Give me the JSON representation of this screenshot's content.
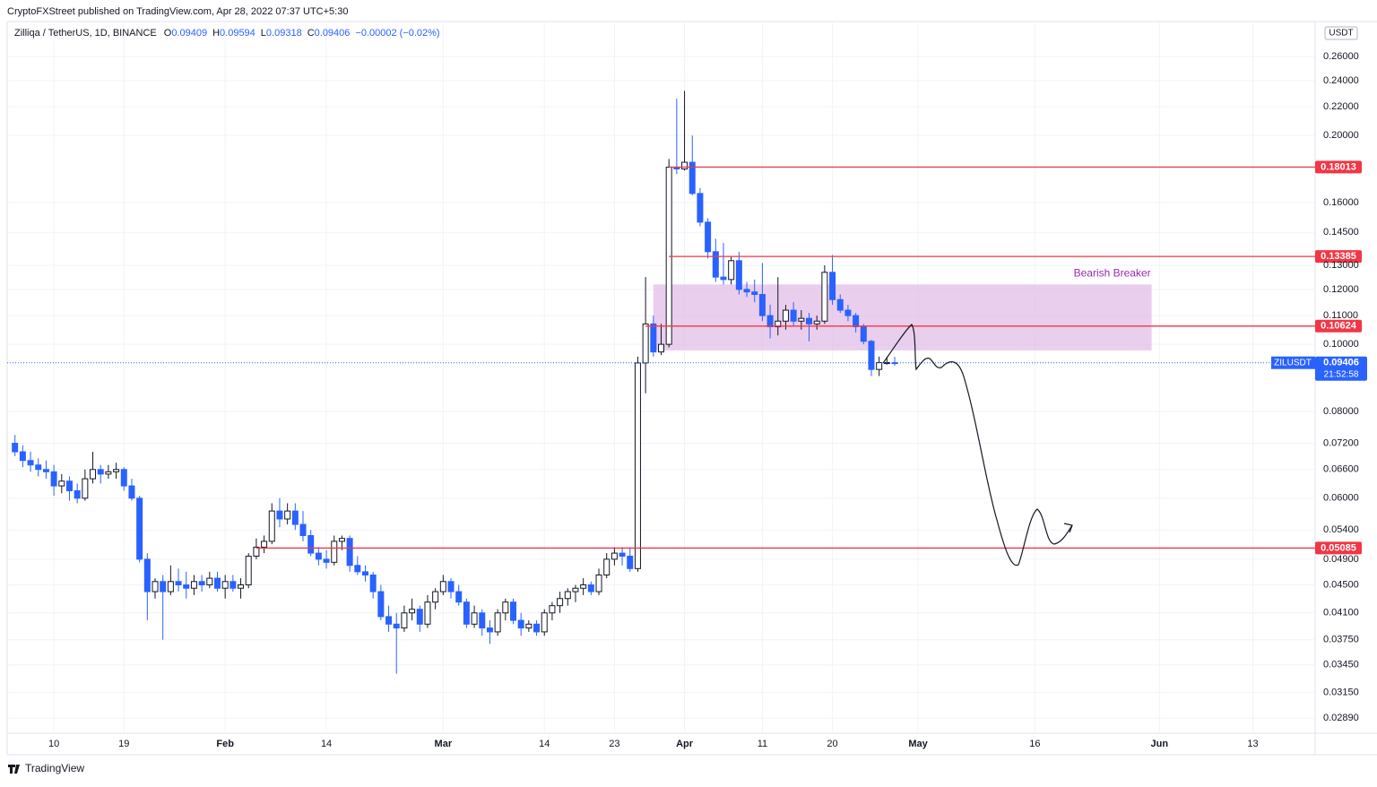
{
  "header": {
    "publisher": "CryptoFXStreet published on TradingView.com, Apr 28, 2022 07:37 UTC+5:30",
    "brand": "TradingView"
  },
  "chart_data": {
    "type": "candlestick",
    "title": "Zilliqa / TetherUS, 1D, BINANCE",
    "legend_ohlc": [
      "O",
      "H",
      "L",
      "C"
    ],
    "change": "−0.00002 (−0.02%)",
    "y_unit": "USDT",
    "log_scale": true,
    "grid": true,
    "up_color": "#ffffff",
    "down_color": "#2962ff",
    "outline_color": "#131722",
    "xlim": [
      "2022-01-04",
      "2022-06-21"
    ],
    "xticks": [
      {
        "value": "2022-01-10",
        "label": "10"
      },
      {
        "value": "2022-01-19",
        "label": "19"
      },
      {
        "value": "2022-02-01",
        "label": "Feb"
      },
      {
        "value": "2022-02-14",
        "label": "14"
      },
      {
        "value": "2022-03-01",
        "label": "Mar"
      },
      {
        "value": "2022-03-14",
        "label": "14"
      },
      {
        "value": "2022-03-23",
        "label": "23"
      },
      {
        "value": "2022-04-01",
        "label": "Apr"
      },
      {
        "value": "2022-04-11",
        "label": "11"
      },
      {
        "value": "2022-04-20",
        "label": "20"
      },
      {
        "value": "2022-05-01",
        "label": "May"
      },
      {
        "value": "2022-05-16",
        "label": "16"
      },
      {
        "value": "2022-06-01",
        "label": "Jun"
      },
      {
        "value": "2022-06-13",
        "label": "13"
      }
    ],
    "ylim": [
      0.0275,
      0.292
    ],
    "yticks": [
      {
        "value": 0.26,
        "label": "0.26000"
      },
      {
        "value": 0.24,
        "label": "0.24000"
      },
      {
        "value": 0.22,
        "label": "0.22000"
      },
      {
        "value": 0.2,
        "label": "0.20000"
      },
      {
        "value": 0.16,
        "label": "0.16000"
      },
      {
        "value": 0.145,
        "label": "0.14500"
      },
      {
        "value": 0.13,
        "label": "0.13000"
      },
      {
        "value": 0.12,
        "label": "0.12000"
      },
      {
        "value": 0.11,
        "label": "0.11000"
      },
      {
        "value": 0.1,
        "label": "0.10000"
      },
      {
        "value": 0.08,
        "label": "0.08000"
      },
      {
        "value": 0.072,
        "label": "0.07200"
      },
      {
        "value": 0.066,
        "label": "0.06600"
      },
      {
        "value": 0.06,
        "label": "0.06000"
      },
      {
        "value": 0.054,
        "label": "0.05400"
      },
      {
        "value": 0.049,
        "label": "0.04900"
      },
      {
        "value": 0.045,
        "label": "0.04500"
      },
      {
        "value": 0.041,
        "label": "0.04100"
      },
      {
        "value": 0.0375,
        "label": "0.03750"
      },
      {
        "value": 0.0345,
        "label": "0.03450"
      },
      {
        "value": 0.0315,
        "label": "0.03150"
      },
      {
        "value": 0.0289,
        "label": "0.02890"
      }
    ],
    "levels": {
      "color": "#f23645",
      "values": [
        0.18013,
        0.13385,
        0.10624,
        0.05085
      ]
    },
    "last_price": {
      "symbol": "ZILUSDT",
      "value": 0.09406,
      "countdown": "21:52:58",
      "color": "#2962ff"
    },
    "zone": {
      "label": "Bearish Breaker",
      "top": 0.122,
      "bottom": 0.098,
      "start": "2022-03-28",
      "end": "2022-05-31",
      "color": "#e1bee7",
      "text_color": "#9c27b0"
    },
    "x": [
      "2022-01-05",
      "2022-01-06",
      "2022-01-07",
      "2022-01-08",
      "2022-01-09",
      "2022-01-10",
      "2022-01-11",
      "2022-01-12",
      "2022-01-13",
      "2022-01-14",
      "2022-01-15",
      "2022-01-16",
      "2022-01-17",
      "2022-01-18",
      "2022-01-19",
      "2022-01-20",
      "2022-01-21",
      "2022-01-22",
      "2022-01-23",
      "2022-01-24",
      "2022-01-25",
      "2022-01-26",
      "2022-01-27",
      "2022-01-28",
      "2022-01-29",
      "2022-01-30",
      "2022-01-31",
      "2022-02-01",
      "2022-02-02",
      "2022-02-03",
      "2022-02-04",
      "2022-02-05",
      "2022-02-06",
      "2022-02-07",
      "2022-02-08",
      "2022-02-09",
      "2022-02-10",
      "2022-02-11",
      "2022-02-12",
      "2022-02-13",
      "2022-02-14",
      "2022-02-15",
      "2022-02-16",
      "2022-02-17",
      "2022-02-18",
      "2022-02-19",
      "2022-02-20",
      "2022-02-21",
      "2022-02-22",
      "2022-02-23",
      "2022-02-24",
      "2022-02-25",
      "2022-02-26",
      "2022-02-27",
      "2022-02-28",
      "2022-03-01",
      "2022-03-02",
      "2022-03-03",
      "2022-03-04",
      "2022-03-05",
      "2022-03-06",
      "2022-03-07",
      "2022-03-08",
      "2022-03-09",
      "2022-03-10",
      "2022-03-11",
      "2022-03-12",
      "2022-03-13",
      "2022-03-14",
      "2022-03-15",
      "2022-03-16",
      "2022-03-17",
      "2022-03-18",
      "2022-03-19",
      "2022-03-20",
      "2022-03-21",
      "2022-03-22",
      "2022-03-23",
      "2022-03-24",
      "2022-03-25",
      "2022-03-26",
      "2022-03-27",
      "2022-03-28",
      "2022-03-29",
      "2022-03-30",
      "2022-03-31",
      "2022-04-01",
      "2022-04-02",
      "2022-04-03",
      "2022-04-04",
      "2022-04-05",
      "2022-04-06",
      "2022-04-07",
      "2022-04-08",
      "2022-04-09",
      "2022-04-10",
      "2022-04-11",
      "2022-04-12",
      "2022-04-13",
      "2022-04-14",
      "2022-04-15",
      "2022-04-16",
      "2022-04-17",
      "2022-04-18",
      "2022-04-19",
      "2022-04-20",
      "2022-04-21",
      "2022-04-22",
      "2022-04-23",
      "2022-04-24",
      "2022-04-25",
      "2022-04-26",
      "2022-04-27",
      "2022-04-28"
    ],
    "ohlc": [
      [
        0.072,
        0.074,
        0.069,
        0.07
      ],
      [
        0.07,
        0.0715,
        0.0665,
        0.068
      ],
      [
        0.068,
        0.07,
        0.0655,
        0.067
      ],
      [
        0.067,
        0.0685,
        0.0645,
        0.066
      ],
      [
        0.066,
        0.068,
        0.064,
        0.0655
      ],
      [
        0.0655,
        0.067,
        0.0605,
        0.0625
      ],
      [
        0.0625,
        0.065,
        0.061,
        0.0635
      ],
      [
        0.0635,
        0.0645,
        0.0595,
        0.0615
      ],
      [
        0.0615,
        0.063,
        0.059,
        0.06
      ],
      [
        0.06,
        0.066,
        0.0595,
        0.064
      ],
      [
        0.064,
        0.07,
        0.063,
        0.066
      ],
      [
        0.066,
        0.067,
        0.063,
        0.065
      ],
      [
        0.065,
        0.067,
        0.064,
        0.0655
      ],
      [
        0.0655,
        0.0675,
        0.064,
        0.066
      ],
      [
        0.066,
        0.0665,
        0.0615,
        0.0625
      ],
      [
        0.0625,
        0.064,
        0.0595,
        0.06
      ],
      [
        0.06,
        0.0605,
        0.0485,
        0.049
      ],
      [
        0.049,
        0.05,
        0.04,
        0.044
      ],
      [
        0.044,
        0.046,
        0.043,
        0.0455
      ],
      [
        0.0455,
        0.0465,
        0.0375,
        0.044
      ],
      [
        0.044,
        0.048,
        0.0435,
        0.0455
      ],
      [
        0.0455,
        0.0475,
        0.044,
        0.045
      ],
      [
        0.045,
        0.047,
        0.043,
        0.0445
      ],
      [
        0.0445,
        0.0465,
        0.0435,
        0.0455
      ],
      [
        0.0455,
        0.0465,
        0.044,
        0.045
      ],
      [
        0.045,
        0.047,
        0.0445,
        0.046
      ],
      [
        0.046,
        0.047,
        0.044,
        0.0445
      ],
      [
        0.0445,
        0.0465,
        0.043,
        0.0455
      ],
      [
        0.0455,
        0.0465,
        0.044,
        0.0445
      ],
      [
        0.0445,
        0.046,
        0.043,
        0.045
      ],
      [
        0.045,
        0.05,
        0.0445,
        0.0495
      ],
      [
        0.0495,
        0.0525,
        0.049,
        0.051
      ],
      [
        0.051,
        0.053,
        0.05,
        0.052
      ],
      [
        0.052,
        0.059,
        0.0515,
        0.0575
      ],
      [
        0.0575,
        0.06,
        0.0545,
        0.056
      ],
      [
        0.056,
        0.059,
        0.055,
        0.0575
      ],
      [
        0.0575,
        0.059,
        0.054,
        0.055
      ],
      [
        0.055,
        0.0575,
        0.052,
        0.053
      ],
      [
        0.053,
        0.054,
        0.0495,
        0.05
      ],
      [
        0.05,
        0.051,
        0.048,
        0.049
      ],
      [
        0.049,
        0.0505,
        0.0475,
        0.0485
      ],
      [
        0.0485,
        0.053,
        0.048,
        0.052
      ],
      [
        0.052,
        0.053,
        0.0505,
        0.0525
      ],
      [
        0.0525,
        0.053,
        0.047,
        0.048
      ],
      [
        0.048,
        0.0495,
        0.0465,
        0.047
      ],
      [
        0.047,
        0.048,
        0.0455,
        0.0465
      ],
      [
        0.0465,
        0.047,
        0.043,
        0.044
      ],
      [
        0.044,
        0.045,
        0.04,
        0.0405
      ],
      [
        0.0405,
        0.042,
        0.0385,
        0.0395
      ],
      [
        0.0395,
        0.041,
        0.0335,
        0.039
      ],
      [
        0.039,
        0.042,
        0.0385,
        0.041
      ],
      [
        0.041,
        0.043,
        0.04,
        0.0415
      ],
      [
        0.0415,
        0.042,
        0.0385,
        0.0395
      ],
      [
        0.0395,
        0.0435,
        0.039,
        0.0425
      ],
      [
        0.0425,
        0.0445,
        0.0415,
        0.044
      ],
      [
        0.044,
        0.0465,
        0.0435,
        0.0455
      ],
      [
        0.0455,
        0.046,
        0.043,
        0.044
      ],
      [
        0.044,
        0.045,
        0.042,
        0.0425
      ],
      [
        0.0425,
        0.043,
        0.039,
        0.0395
      ],
      [
        0.0395,
        0.042,
        0.039,
        0.041
      ],
      [
        0.041,
        0.0415,
        0.038,
        0.039
      ],
      [
        0.039,
        0.04,
        0.037,
        0.0385
      ],
      [
        0.0385,
        0.0415,
        0.038,
        0.041
      ],
      [
        0.041,
        0.043,
        0.04,
        0.0425
      ],
      [
        0.0425,
        0.043,
        0.0395,
        0.04
      ],
      [
        0.04,
        0.041,
        0.038,
        0.039
      ],
      [
        0.039,
        0.04,
        0.0385,
        0.0395
      ],
      [
        0.0395,
        0.04,
        0.038,
        0.0385
      ],
      [
        0.0385,
        0.0415,
        0.038,
        0.041
      ],
      [
        0.041,
        0.0425,
        0.04,
        0.042
      ],
      [
        0.042,
        0.044,
        0.041,
        0.043
      ],
      [
        0.043,
        0.0445,
        0.042,
        0.044
      ],
      [
        0.044,
        0.045,
        0.0425,
        0.0445
      ],
      [
        0.0445,
        0.046,
        0.0435,
        0.045
      ],
      [
        0.045,
        0.0455,
        0.0435,
        0.044
      ],
      [
        0.044,
        0.0475,
        0.0435,
        0.0465
      ],
      [
        0.0465,
        0.05,
        0.046,
        0.049
      ],
      [
        0.049,
        0.051,
        0.048,
        0.05
      ],
      [
        0.05,
        0.051,
        0.048,
        0.0495
      ],
      [
        0.0495,
        0.051,
        0.047,
        0.0475
      ],
      [
        0.0475,
        0.096,
        0.047,
        0.094
      ],
      [
        0.094,
        0.125,
        0.085,
        0.107
      ],
      [
        0.107,
        0.11,
        0.096,
        0.0975
      ],
      [
        0.0975,
        0.107,
        0.0965,
        0.1
      ],
      [
        0.1,
        0.185,
        0.099,
        0.18
      ],
      [
        0.18,
        0.226,
        0.176,
        0.179
      ],
      [
        0.179,
        0.232,
        0.178,
        0.183
      ],
      [
        0.183,
        0.2,
        0.164,
        0.165
      ],
      [
        0.165,
        0.168,
        0.148,
        0.15
      ],
      [
        0.15,
        0.152,
        0.133,
        0.136
      ],
      [
        0.136,
        0.142,
        0.123,
        0.125
      ],
      [
        0.125,
        0.14,
        0.122,
        0.124
      ],
      [
        0.124,
        0.134,
        0.122,
        0.132
      ],
      [
        0.132,
        0.136,
        0.118,
        0.12
      ],
      [
        0.12,
        0.123,
        0.117,
        0.119
      ],
      [
        0.119,
        0.124,
        0.115,
        0.118
      ],
      [
        0.118,
        0.131,
        0.108,
        0.11
      ],
      [
        0.11,
        0.114,
        0.102,
        0.106
      ],
      [
        0.106,
        0.125,
        0.103,
        0.108
      ],
      [
        0.108,
        0.114,
        0.105,
        0.112
      ],
      [
        0.112,
        0.115,
        0.106,
        0.108
      ],
      [
        0.108,
        0.112,
        0.105,
        0.109
      ],
      [
        0.109,
        0.111,
        0.101,
        0.107
      ],
      [
        0.107,
        0.11,
        0.105,
        0.108
      ],
      [
        0.108,
        0.13,
        0.107,
        0.127
      ],
      [
        0.127,
        0.1345,
        0.114,
        0.116
      ],
      [
        0.116,
        0.118,
        0.111,
        0.112
      ],
      [
        0.112,
        0.114,
        0.108,
        0.11
      ],
      [
        0.11,
        0.111,
        0.104,
        0.106
      ],
      [
        0.106,
        0.107,
        0.1,
        0.101
      ],
      [
        0.101,
        0.1015,
        0.09,
        0.092
      ],
      [
        0.092,
        0.096,
        0.09,
        0.0941
      ],
      [
        0.0941,
        0.096,
        0.0935,
        0.0941
      ],
      [
        0.09409,
        0.09594,
        0.09318,
        0.09406
      ]
    ]
  }
}
